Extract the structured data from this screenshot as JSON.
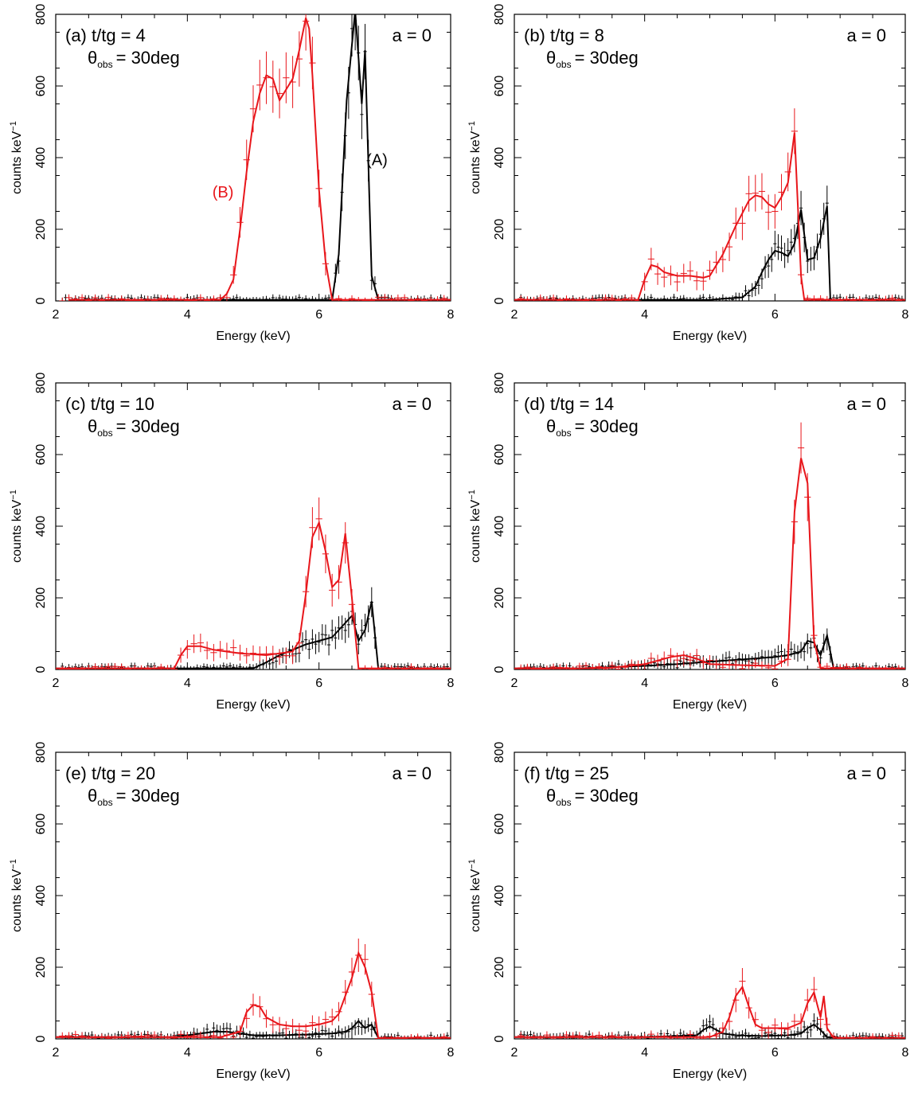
{
  "figure": {
    "xlabel": "Energy (keV)",
    "ylabel": "counts keV",
    "ylabel_sup": "−1",
    "spin_label": "a = 0",
    "theta_symbol": "θ",
    "theta_sub": "obs",
    "theta_value": "= 30deg",
    "x_ticks": [
      "2",
      "4",
      "6",
      "8"
    ],
    "y_ticks": [
      "0",
      "200",
      "400",
      "600",
      "800"
    ],
    "series_labels": {
      "A": "(A)",
      "B": "(B)"
    },
    "colors": {
      "A": "#000000",
      "B": "#e8161b",
      "axis": "#000000"
    }
  },
  "chart_data": [
    {
      "type": "line",
      "panel_label": "(a) t/tg = 4",
      "xlim": [
        2,
        8
      ],
      "ylim": [
        0,
        800
      ],
      "series": [
        {
          "key": "A",
          "x": [
            2.2,
            3.0,
            4.0,
            5.0,
            6.0,
            6.2,
            6.3,
            6.42,
            6.55,
            6.65,
            6.7,
            6.8,
            6.9,
            7.2,
            8.0
          ],
          "y": [
            3,
            3,
            3,
            3,
            3,
            3,
            130,
            560,
            810,
            550,
            700,
            70,
            3,
            3,
            3
          ]
        },
        {
          "key": "B",
          "x": [
            2.2,
            3.0,
            4.0,
            4.5,
            4.6,
            4.7,
            4.8,
            4.9,
            5.0,
            5.1,
            5.2,
            5.3,
            5.4,
            5.5,
            5.6,
            5.7,
            5.8,
            5.85,
            5.9,
            6.0,
            6.1,
            6.2,
            6.3,
            8.0
          ],
          "y": [
            3,
            3,
            3,
            3,
            20,
            60,
            200,
            360,
            500,
            580,
            630,
            620,
            560,
            590,
            620,
            700,
            790,
            760,
            630,
            310,
            110,
            3,
            3,
            3
          ]
        }
      ],
      "annotations": [
        {
          "key": "A",
          "text": "(A)",
          "x": 6.72,
          "y": 395
        },
        {
          "key": "B",
          "text": "(B)",
          "x": 4.38,
          "y": 305
        }
      ]
    },
    {
      "type": "line",
      "panel_label": "(b) t/tg = 8",
      "xlim": [
        2,
        8
      ],
      "ylim": [
        0,
        800
      ],
      "series": [
        {
          "key": "A",
          "x": [
            2.0,
            3.0,
            4.0,
            5.0,
            5.5,
            5.7,
            5.8,
            5.9,
            6.0,
            6.1,
            6.2,
            6.3,
            6.4,
            6.5,
            6.6,
            6.7,
            6.8,
            6.85,
            7.0,
            8.0
          ],
          "y": [
            3,
            3,
            3,
            3,
            10,
            40,
            80,
            115,
            140,
            135,
            125,
            160,
            255,
            115,
            120,
            175,
            265,
            3,
            3,
            3
          ]
        },
        {
          "key": "B",
          "x": [
            2.0,
            3.0,
            3.9,
            4.0,
            4.1,
            4.2,
            4.3,
            4.5,
            4.7,
            4.9,
            5.0,
            5.2,
            5.4,
            5.6,
            5.7,
            5.8,
            5.9,
            6.0,
            6.1,
            6.2,
            6.3,
            6.4,
            6.45,
            8.0
          ],
          "y": [
            3,
            3,
            3,
            60,
            100,
            95,
            80,
            70,
            70,
            65,
            70,
            130,
            210,
            280,
            295,
            290,
            270,
            260,
            290,
            330,
            470,
            70,
            3,
            3
          ]
        }
      ]
    },
    {
      "type": "line",
      "panel_label": "(c) t/tg = 10",
      "xlim": [
        2,
        8
      ],
      "ylim": [
        0,
        800
      ],
      "series": [
        {
          "key": "A",
          "x": [
            2.0,
            3.0,
            4.0,
            5.0,
            5.2,
            5.4,
            5.6,
            5.8,
            6.0,
            6.2,
            6.4,
            6.5,
            6.6,
            6.7,
            6.8,
            6.9,
            7.0,
            8.0
          ],
          "y": [
            3,
            3,
            3,
            3,
            20,
            40,
            55,
            70,
            80,
            90,
            130,
            150,
            80,
            110,
            190,
            3,
            3,
            3
          ]
        },
        {
          "key": "B",
          "x": [
            2.0,
            3.0,
            3.8,
            3.9,
            4.0,
            4.2,
            4.4,
            4.8,
            5.2,
            5.6,
            5.7,
            5.8,
            5.9,
            6.0,
            6.1,
            6.2,
            6.3,
            6.4,
            6.5,
            6.6,
            6.7,
            8.0
          ],
          "y": [
            3,
            3,
            3,
            40,
            65,
            65,
            55,
            45,
            40,
            50,
            80,
            210,
            370,
            410,
            330,
            230,
            250,
            380,
            200,
            3,
            3,
            3
          ]
        }
      ]
    },
    {
      "type": "line",
      "panel_label": "(d) t/tg = 14",
      "xlim": [
        2,
        8
      ],
      "ylim": [
        0,
        800
      ],
      "series": [
        {
          "key": "A",
          "x": [
            2.0,
            3.0,
            4.0,
            4.5,
            5.0,
            5.5,
            6.0,
            6.2,
            6.4,
            6.5,
            6.6,
            6.7,
            6.8,
            6.9,
            7.0,
            8.0
          ],
          "y": [
            3,
            3,
            10,
            15,
            22,
            28,
            35,
            40,
            50,
            80,
            75,
            40,
            95,
            3,
            3,
            3
          ]
        },
        {
          "key": "B",
          "x": [
            2.0,
            3.0,
            3.5,
            4.0,
            4.4,
            4.6,
            4.8,
            5.0,
            5.5,
            6.0,
            6.2,
            6.3,
            6.4,
            6.5,
            6.6,
            6.7,
            8.0
          ],
          "y": [
            3,
            3,
            5,
            15,
            35,
            40,
            30,
            15,
            12,
            10,
            30,
            440,
            590,
            520,
            80,
            3,
            3
          ]
        }
      ]
    },
    {
      "type": "line",
      "panel_label": "(e) t/tg = 20",
      "xlim": [
        2,
        8
      ],
      "ylim": [
        0,
        800
      ],
      "series": [
        {
          "key": "A",
          "x": [
            2.0,
            3.0,
            3.8,
            4.0,
            4.2,
            4.4,
            4.6,
            4.8,
            5.0,
            5.4,
            5.8,
            6.2,
            6.4,
            6.5,
            6.6,
            6.7,
            6.8,
            6.9,
            7.0,
            8.0
          ],
          "y": [
            5,
            5,
            5,
            10,
            15,
            20,
            20,
            15,
            10,
            10,
            12,
            15,
            20,
            30,
            50,
            30,
            40,
            3,
            3,
            3
          ]
        },
        {
          "key": "B",
          "x": [
            2.0,
            3.0,
            4.0,
            4.5,
            4.8,
            4.9,
            5.0,
            5.1,
            5.2,
            5.4,
            5.6,
            5.8,
            6.0,
            6.2,
            6.3,
            6.4,
            6.5,
            6.6,
            6.7,
            6.8,
            6.9,
            8.0
          ],
          "y": [
            5,
            5,
            5,
            5,
            20,
            75,
            95,
            90,
            60,
            40,
            35,
            35,
            40,
            50,
            70,
            120,
            170,
            240,
            200,
            130,
            3,
            3
          ]
        }
      ]
    },
    {
      "type": "line",
      "panel_label": "(f) t/tg = 25",
      "xlim": [
        2,
        8
      ],
      "ylim": [
        0,
        800
      ],
      "series": [
        {
          "key": "A",
          "x": [
            2.0,
            3.0,
            4.0,
            4.8,
            4.9,
            5.0,
            5.1,
            5.2,
            5.4,
            5.8,
            6.2,
            6.4,
            6.5,
            6.6,
            6.7,
            6.8,
            7.0,
            8.0
          ],
          "y": [
            5,
            5,
            5,
            10,
            25,
            35,
            25,
            15,
            10,
            8,
            10,
            15,
            30,
            40,
            25,
            5,
            3,
            3
          ]
        },
        {
          "key": "B",
          "x": [
            2.0,
            3.0,
            4.0,
            5.0,
            5.2,
            5.3,
            5.4,
            5.5,
            5.6,
            5.7,
            5.8,
            6.0,
            6.2,
            6.4,
            6.5,
            6.6,
            6.7,
            6.75,
            6.8,
            6.9,
            8.0
          ],
          "y": [
            5,
            5,
            5,
            5,
            20,
            60,
            120,
            145,
            90,
            40,
            30,
            30,
            30,
            45,
            100,
            130,
            60,
            120,
            30,
            3,
            3
          ]
        }
      ]
    }
  ]
}
